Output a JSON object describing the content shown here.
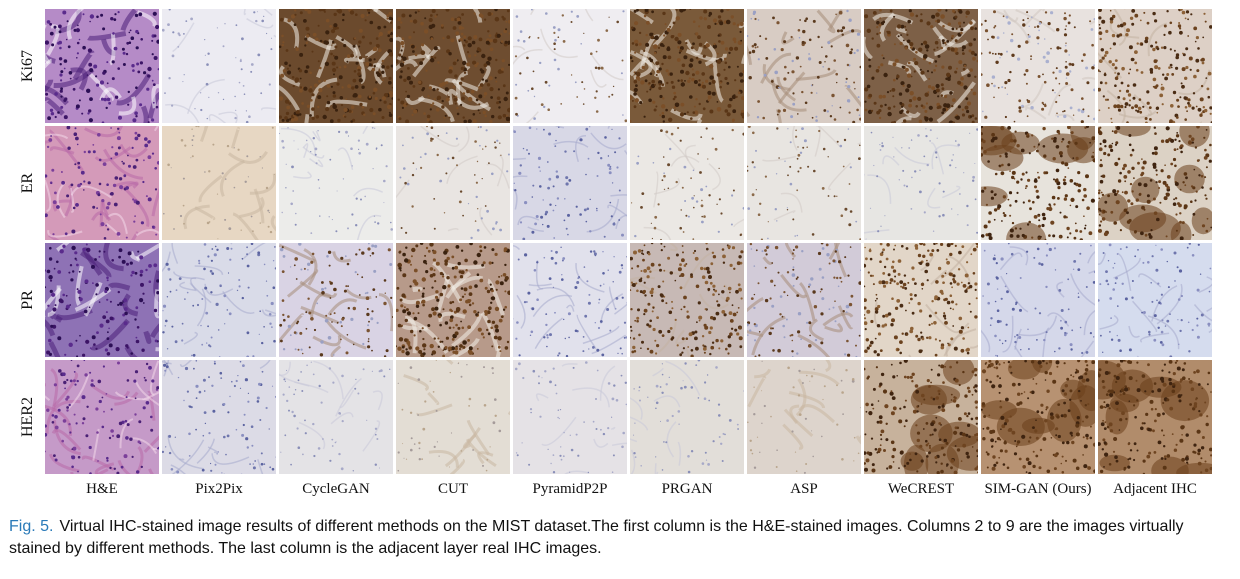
{
  "figure": {
    "rows": [
      {
        "label": "Ki67"
      },
      {
        "label": "ER"
      },
      {
        "label": "PR"
      },
      {
        "label": "HER2"
      }
    ],
    "columns": [
      {
        "label": "H&E"
      },
      {
        "label": "Pix2Pix"
      },
      {
        "label": "CycleGAN"
      },
      {
        "label": "CUT"
      },
      {
        "label": "PyramidP2P"
      },
      {
        "label": "PRGAN"
      },
      {
        "label": "ASP"
      },
      {
        "label": "WeCREST"
      },
      {
        "label": "SIM-GAN (Ours)"
      },
      {
        "label": "Adjacent IHC"
      }
    ],
    "tiles": [
      [
        {
          "style": "he_dense",
          "bg": "#b58bc7"
        },
        {
          "style": "pale",
          "bg": "#ecebf2"
        },
        {
          "style": "brown_heavy",
          "bg": "#6b4a2d"
        },
        {
          "style": "brown_heavy",
          "bg": "#6e4d30"
        },
        {
          "style": "dots_light",
          "bg": "#efedf1"
        },
        {
          "style": "brown_heavy",
          "bg": "#7a5a3a"
        },
        {
          "style": "brown_medium",
          "bg": "#d8ccc4"
        },
        {
          "style": "brown_heavy",
          "bg": "#7d6047"
        },
        {
          "style": "dots_medium",
          "bg": "#e8e2df"
        },
        {
          "style": "dots_heavy",
          "bg": "#ddd0c6"
        }
      ],
      [
        {
          "style": "he_pink",
          "bg": "#d49ab9"
        },
        {
          "style": "tan",
          "bg": "#e7d7c3"
        },
        {
          "style": "pale",
          "bg": "#ececea"
        },
        {
          "style": "dots_light",
          "bg": "#e9e5e2"
        },
        {
          "style": "blue_light",
          "bg": "#d8d8e6"
        },
        {
          "style": "dots_light",
          "bg": "#ebe8e4"
        },
        {
          "style": "dots_light",
          "bg": "#e8e5e1"
        },
        {
          "style": "pale",
          "bg": "#e7e6e3"
        },
        {
          "style": "brown_cluster",
          "bg": "#e7e3dc"
        },
        {
          "style": "brown_cluster",
          "bg": "#dcd2c5"
        }
      ],
      [
        {
          "style": "he_dense",
          "bg": "#8e72b5"
        },
        {
          "style": "blue_light",
          "bg": "#d9dbe8"
        },
        {
          "style": "brown_medium",
          "bg": "#d9d3e4"
        },
        {
          "style": "brown_heavy",
          "bg": "#b79a8a"
        },
        {
          "style": "blue_light",
          "bg": "#e1e1ec"
        },
        {
          "style": "dots_heavy",
          "bg": "#c7b9b5"
        },
        {
          "style": "brown_medium",
          "bg": "#d2cbd8"
        },
        {
          "style": "dots_heavy",
          "bg": "#e2d6c8"
        },
        {
          "style": "blue_light",
          "bg": "#d5d8ea"
        },
        {
          "style": "blue_light",
          "bg": "#d5dcee"
        }
      ],
      [
        {
          "style": "he_pink",
          "bg": "#c59ac8"
        },
        {
          "style": "blue_light",
          "bg": "#dcdbe6"
        },
        {
          "style": "pale",
          "bg": "#e4e3e6"
        },
        {
          "style": "tan",
          "bg": "#e3ddd4"
        },
        {
          "style": "pale",
          "bg": "#e5e2e6"
        },
        {
          "style": "pale",
          "bg": "#e2ded9"
        },
        {
          "style": "tan",
          "bg": "#ddd4cc"
        },
        {
          "style": "brown_cluster",
          "bg": "#c7b29c"
        },
        {
          "style": "brown_cluster",
          "bg": "#b79272"
        },
        {
          "style": "brown_cluster",
          "bg": "#b18c6b"
        }
      ]
    ]
  },
  "caption": {
    "fig_label": "Fig. 5.",
    "text": "Virtual IHC-stained image results of different methods on the MIST dataset.The first column is the H&E-stained images. Columns 2 to 9 are the images virtually stained by different methods. The last column is the adjacent layer real IHC images."
  }
}
